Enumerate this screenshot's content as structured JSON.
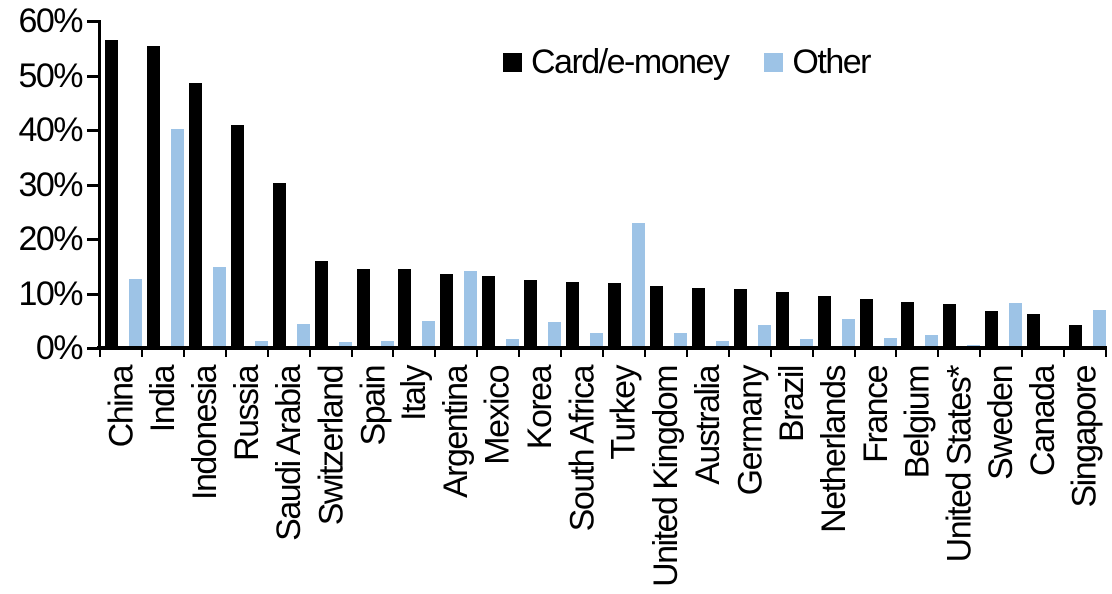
{
  "chart_data": {
    "type": "bar",
    "title": "",
    "categories": [
      "China",
      "India",
      "Indonesia",
      "Russia",
      "Saudi Arabia",
      "Switzerland",
      "Spain",
      "Italy",
      "Argentina",
      "Mexico",
      "Korea",
      "South Africa",
      "Turkey",
      "United Kingdom",
      "Australia",
      "Germany",
      "Brazil",
      "Netherlands",
      "France",
      "Belgium",
      "United States*",
      "Sweden",
      "Canada",
      "Singapore"
    ],
    "series": [
      {
        "name": "Card/e-money",
        "color": "#000000",
        "values": [
          56.3,
          55.1,
          48.4,
          40.6,
          29.9,
          15.6,
          14.2,
          14.1,
          13.2,
          12.9,
          12.2,
          11.8,
          11.6,
          11.0,
          10.7,
          10.5,
          10.0,
          9.2,
          8.6,
          8.1,
          7.8,
          6.4,
          5.9,
          3.9
        ]
      },
      {
        "name": "Other",
        "color": "#9DC3E6",
        "values": [
          12.3,
          39.8,
          14.5,
          1.0,
          4.0,
          0.7,
          1.0,
          4.6,
          13.8,
          1.3,
          4.5,
          2.3,
          22.6,
          2.3,
          0.9,
          3.9,
          1.2,
          4.9,
          1.5,
          2.0,
          0.2,
          7.9,
          0,
          6.6
        ]
      }
    ],
    "xlabel": "",
    "ylabel": "",
    "ylim": [
      0,
      60
    ],
    "ytick_labels": [
      "0%",
      "10%",
      "20%",
      "30%",
      "40%",
      "50%",
      "60%"
    ],
    "grid": false,
    "legend_position": "top-center"
  }
}
